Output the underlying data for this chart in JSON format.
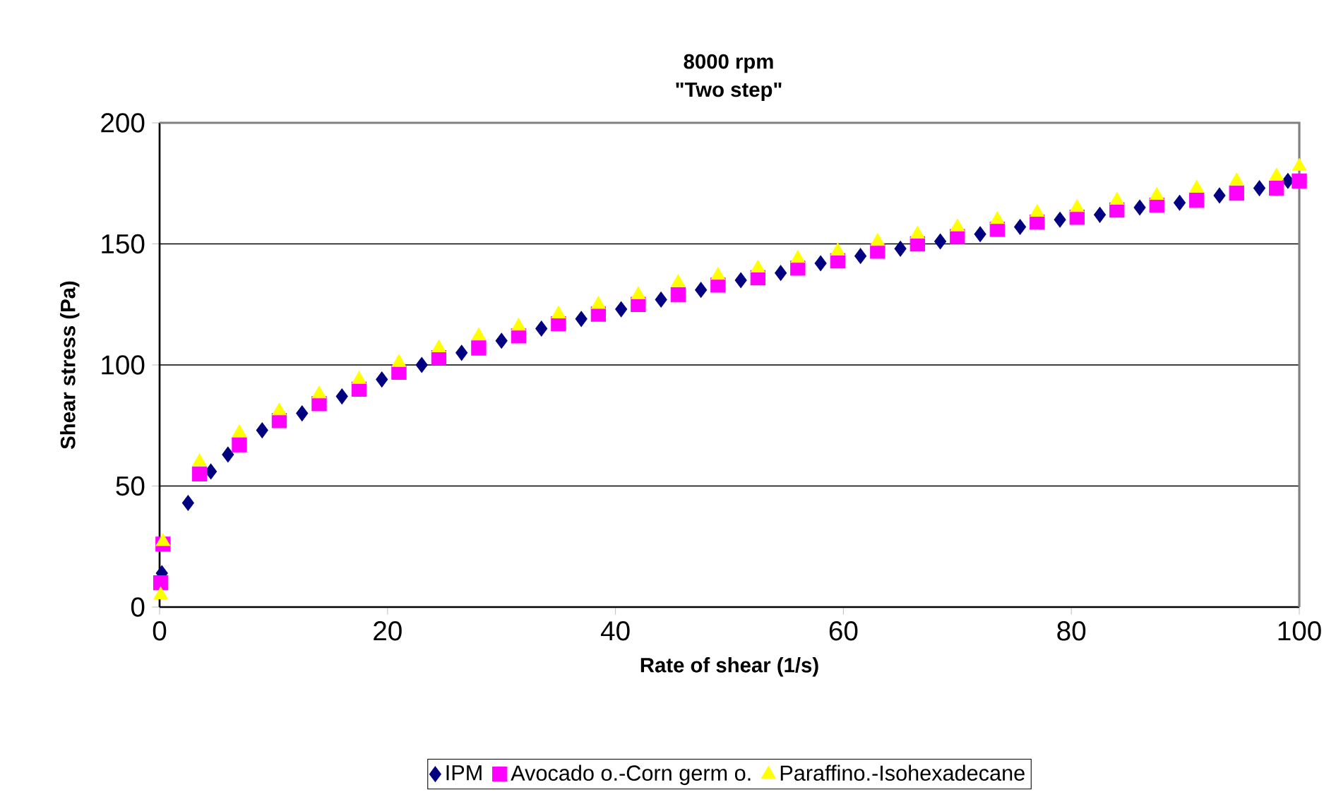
{
  "chart_data": {
    "type": "scatter",
    "title": "8000 rpm",
    "subtitle": "\"Two step\"",
    "xlabel": "Rate of shear (1/s)",
    "ylabel": "Shear stress (Pa)",
    "xlim": [
      0,
      100
    ],
    "ylim": [
      0,
      200
    ],
    "xticks": [
      0,
      20,
      40,
      60,
      80,
      100
    ],
    "yticks": [
      0,
      50,
      100,
      150,
      200
    ],
    "grid": "y",
    "legend": "bottom",
    "series": [
      {
        "name": "IPM",
        "color": "#000080",
        "marker": "diamond",
        "x": [
          0.2,
          2.5,
          4.5,
          6,
          9,
          12.5,
          16,
          19.5,
          23,
          26.5,
          30,
          33.5,
          37,
          40.5,
          44,
          47.5,
          51,
          54.5,
          58,
          61.5,
          65,
          68.5,
          72,
          75.5,
          79,
          82.5,
          86,
          89.5,
          93,
          96.5,
          99
        ],
        "values": [
          14,
          43,
          56,
          63,
          73,
          80,
          87,
          94,
          100,
          105,
          110,
          115,
          119,
          123,
          127,
          131,
          135,
          138,
          142,
          145,
          148,
          151,
          154,
          157,
          160,
          162,
          165,
          167,
          170,
          173,
          176
        ]
      },
      {
        "name": "Avocado o.-Corn germ o.",
        "color": "#ff00ff",
        "marker": "square",
        "x": [
          0.1,
          0.3,
          3.5,
          7,
          10.5,
          14,
          17.5,
          21,
          24.5,
          28,
          31.5,
          35,
          38.5,
          42,
          45.5,
          49,
          52.5,
          56,
          59.5,
          63,
          66.5,
          70,
          73.5,
          77,
          80.5,
          84,
          87.5,
          91,
          94.5,
          98,
          100
        ],
        "values": [
          10,
          26,
          55,
          67,
          77,
          84,
          90,
          97,
          103,
          107,
          112,
          117,
          121,
          125,
          129,
          133,
          136,
          140,
          143,
          147,
          150,
          153,
          156,
          159,
          161,
          164,
          166,
          168,
          171,
          173,
          176
        ]
      },
      {
        "name": "Paraffino.-Isohexadecane",
        "color": "#ffff00",
        "marker": "triangle",
        "x": [
          0.1,
          0.3,
          3.5,
          7,
          10.5,
          14,
          17.5,
          21,
          24.5,
          28,
          31.5,
          35,
          38.5,
          42,
          45.5,
          49,
          52.5,
          56,
          59.5,
          63,
          66.5,
          70,
          73.5,
          77,
          80.5,
          84,
          87.5,
          91,
          94.5,
          98,
          100
        ],
        "values": [
          5,
          27,
          60,
          72,
          81,
          88,
          94,
          101,
          107,
          112,
          116,
          121,
          125,
          129,
          134,
          137,
          140,
          144,
          147,
          151,
          154,
          157,
          160,
          163,
          165,
          168,
          170,
          173,
          176,
          178,
          182
        ]
      }
    ]
  }
}
